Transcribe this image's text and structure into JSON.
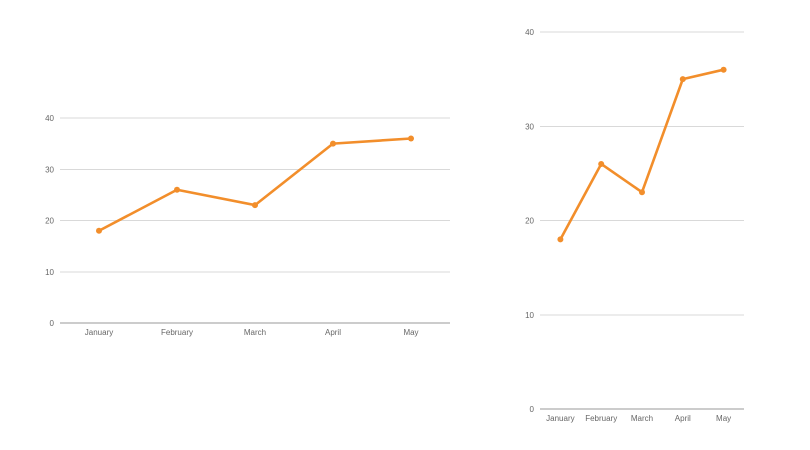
{
  "chart_data": [
    {
      "type": "line",
      "categories": [
        "January",
        "February",
        "March",
        "April",
        "May"
      ],
      "series": [
        {
          "values": [
            18,
            26,
            23,
            35,
            36
          ]
        }
      ],
      "yticks": [
        0,
        10,
        20,
        30,
        40
      ],
      "ylim": [
        0,
        40
      ],
      "grid": true,
      "legend": "none",
      "color": "#f28e2b"
    },
    {
      "type": "line",
      "categories": [
        "January",
        "February",
        "March",
        "April",
        "May"
      ],
      "series": [
        {
          "values": [
            18,
            26,
            23,
            35,
            36
          ]
        }
      ],
      "yticks": [
        0,
        10,
        20,
        30,
        40
      ],
      "ylim": [
        0,
        40
      ],
      "grid": true,
      "legend": "none",
      "color": "#f28e2b"
    }
  ]
}
